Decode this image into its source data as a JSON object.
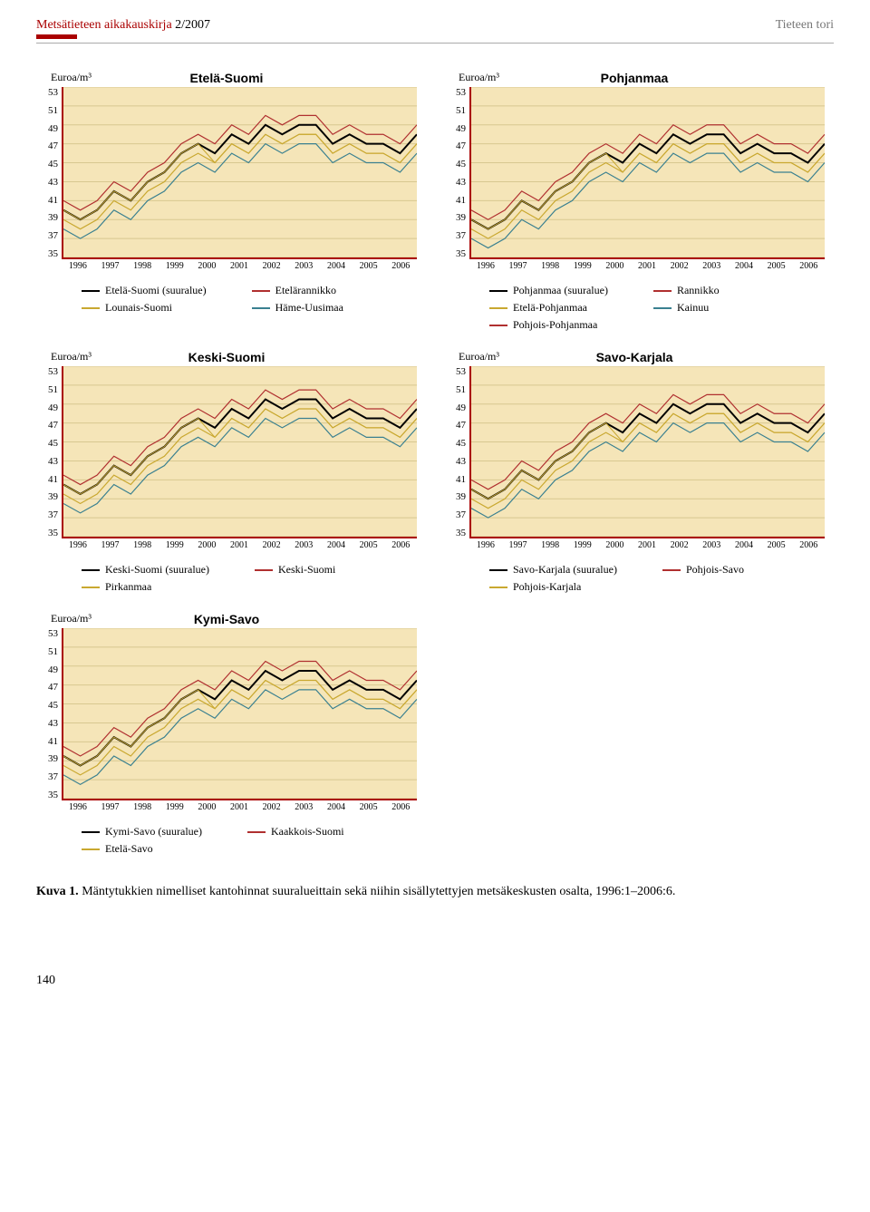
{
  "header": {
    "journal_title": "Metsätieteen aikakauskirja",
    "issue": "2/2007",
    "section": "Tieteen tori"
  },
  "common": {
    "ylabel": "Euroa/m³",
    "yticks": [
      53,
      51,
      49,
      47,
      45,
      43,
      41,
      39,
      37,
      35
    ],
    "xticks": [
      "1996",
      "1997",
      "1998",
      "1999",
      "2000",
      "2001",
      "2002",
      "2003",
      "2004",
      "2005",
      "2006"
    ],
    "plot_bg": "#f5e5b8",
    "axis_color": "#a82020",
    "grid_color": "#d8c890"
  },
  "series_base": {
    "x": [
      0,
      1,
      2,
      3,
      4,
      5,
      6,
      7,
      8,
      9,
      10,
      11,
      12,
      13,
      14,
      15,
      16,
      17,
      18,
      19,
      20,
      21
    ],
    "y_main": [
      40,
      39,
      40,
      42,
      41,
      43,
      44,
      46,
      47,
      46,
      48,
      47,
      49,
      48,
      49,
      49,
      47,
      48,
      47,
      47,
      46,
      48
    ],
    "y_sub1": [
      39,
      38,
      39,
      41,
      40,
      42,
      43,
      45,
      46,
      45,
      47,
      46,
      48,
      47,
      48,
      48,
      46,
      47,
      46,
      46,
      45,
      47
    ],
    "y_sub2": [
      41,
      40,
      41,
      43,
      42,
      44,
      45,
      47,
      48,
      47,
      49,
      48,
      50,
      49,
      50,
      50,
      48,
      49,
      48,
      48,
      47,
      49
    ],
    "y_sub3": [
      38,
      37,
      38,
      40,
      39,
      41,
      42,
      44,
      45,
      44,
      46,
      45,
      47,
      46,
      47,
      47,
      45,
      46,
      45,
      45,
      44,
      46
    ],
    "y_sub4": [
      40,
      39,
      40,
      42,
      41,
      43,
      44,
      46,
      47,
      45,
      47,
      46,
      48,
      47,
      48,
      48,
      46,
      47,
      46,
      46,
      45,
      47
    ]
  },
  "colors": {
    "black": "#000000",
    "darkyellow": "#c9a830",
    "red": "#b03030",
    "teal": "#3a8090"
  },
  "charts": [
    {
      "id": "etela",
      "title": "Etelä-Suomi",
      "legend": [
        [
          {
            "label": "Etelä-Suomi (suuralue)",
            "color": "#000000"
          },
          {
            "label": "Lounais-Suomi",
            "color": "#c9a830"
          }
        ],
        [
          {
            "label": "Etelärannikko",
            "color": "#b03030"
          },
          {
            "label": "Häme-Uusimaa",
            "color": "#3a8090"
          }
        ]
      ]
    },
    {
      "id": "pohjanmaa",
      "title": "Pohjanmaa",
      "legend": [
        [
          {
            "label": "Pohjanmaa (suuralue)",
            "color": "#000000"
          },
          {
            "label": "Etelä-Pohjanmaa",
            "color": "#c9a830"
          },
          {
            "label": "Pohjois-Pohjanmaa",
            "color": "#b03030"
          }
        ],
        [
          {
            "label": "Rannikko",
            "color": "#b03030"
          },
          {
            "label": "Kainuu",
            "color": "#3a8090"
          }
        ]
      ]
    },
    {
      "id": "keski",
      "title": "Keski-Suomi",
      "legend": [
        [
          {
            "label": "Keski-Suomi (suuralue)",
            "color": "#000000"
          },
          {
            "label": "Pirkanmaa",
            "color": "#c9a830"
          }
        ],
        [
          {
            "label": "Keski-Suomi",
            "color": "#b03030"
          }
        ]
      ]
    },
    {
      "id": "savo_karjala",
      "title": "Savo-Karjala",
      "legend": [
        [
          {
            "label": "Savo-Karjala (suuralue)",
            "color": "#000000"
          },
          {
            "label": "Pohjois-Karjala",
            "color": "#c9a830"
          }
        ],
        [
          {
            "label": "Pohjois-Savo",
            "color": "#b03030"
          }
        ]
      ]
    },
    {
      "id": "kymi_savo",
      "title": "Kymi-Savo",
      "legend": [
        [
          {
            "label": "Kymi-Savo (suuralue)",
            "color": "#000000"
          },
          {
            "label": "Etelä-Savo",
            "color": "#c9a830"
          }
        ],
        [
          {
            "label": "Kaakkois-Suomi",
            "color": "#b03030"
          }
        ]
      ]
    }
  ],
  "caption": {
    "label": "Kuva 1.",
    "text": "Mäntytukkien nimelliset kantohinnat suuralueittain sekä niihin sisällytettyjen metsäkeskusten osalta, 1996:1–2006:6."
  },
  "page_number": "140"
}
